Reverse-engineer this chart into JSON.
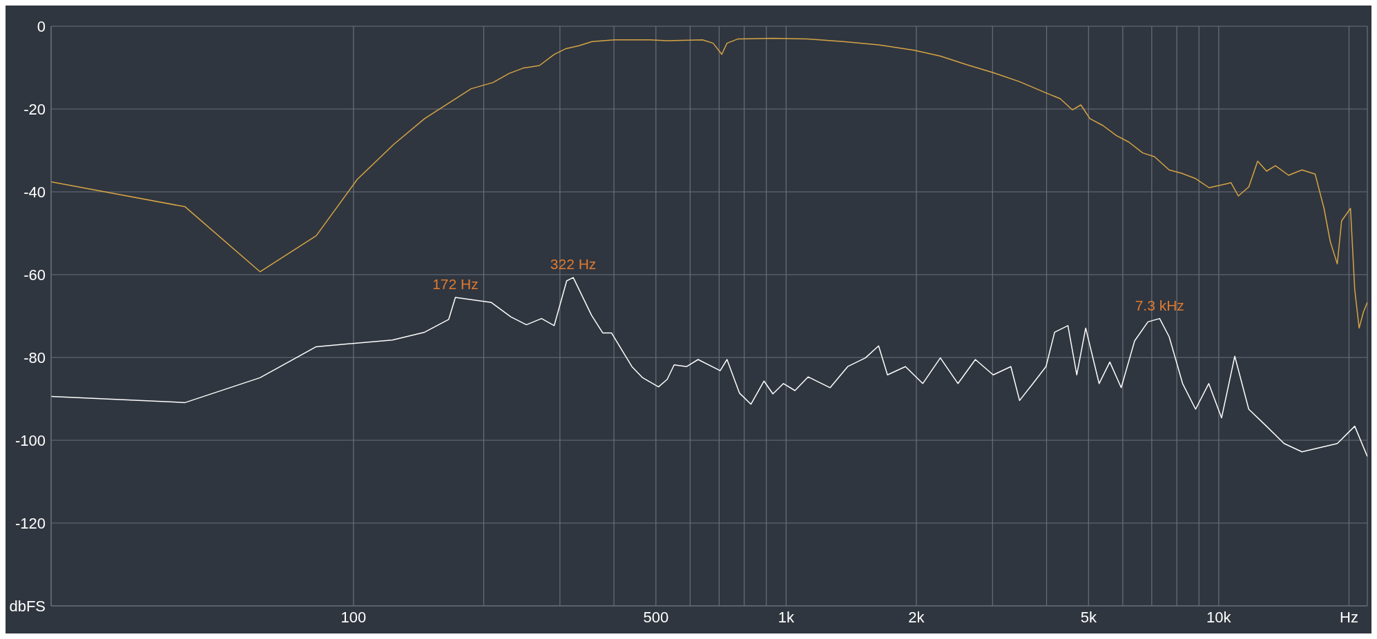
{
  "chart_data": {
    "type": "line",
    "log": "x",
    "grid": true,
    "line_style": "solid",
    "xlim": [
      20,
      22050
    ],
    "ylim": [
      -140,
      0
    ],
    "xticks": [
      {
        "value": 100,
        "label": "100"
      },
      {
        "value": 200,
        "label": null
      },
      {
        "value": 300,
        "label": null
      },
      {
        "value": 400,
        "label": null
      },
      {
        "value": 500,
        "label": "500"
      },
      {
        "value": 600,
        "label": null
      },
      {
        "value": 700,
        "label": null
      },
      {
        "value": 800,
        "label": null
      },
      {
        "value": 900,
        "label": null
      },
      {
        "value": 1000,
        "label": "1k"
      },
      {
        "value": 2000,
        "label": "2k"
      },
      {
        "value": 3000,
        "label": null
      },
      {
        "value": 4000,
        "label": null
      },
      {
        "value": 5000,
        "label": "5k"
      },
      {
        "value": 6000,
        "label": null
      },
      {
        "value": 7000,
        "label": null
      },
      {
        "value": 8000,
        "label": null
      },
      {
        "value": 9000,
        "label": null
      },
      {
        "value": 10000,
        "label": "10k"
      },
      {
        "value": 20000,
        "label": "Hz"
      }
    ],
    "yticks": [
      0,
      -20,
      -40,
      -60,
      -80,
      -100,
      -120,
      {
        "value": -140,
        "label": "dbFS"
      }
    ],
    "series": [
      {
        "color": "#d6a545",
        "x": [
          20,
          40.8,
          60.8,
          82,
          102,
          124,
          146,
          187,
          210,
          229,
          247,
          269,
          291,
          310,
          332,
          356,
          401,
          484,
          531,
          641,
          678,
          710,
          730,
          772,
          932,
          1124,
          1356,
          1636,
          1974,
          2272,
          2615,
          3010,
          3464,
          3987,
          4300,
          4589,
          4800,
          5037,
          5400,
          5797,
          6200,
          6672,
          7100,
          7680,
          8200,
          8839,
          9500,
          10675,
          11100,
          11735,
          12300,
          12900,
          13520,
          14500,
          15570,
          16700,
          17510,
          18100,
          18790,
          19230,
          20160,
          20620,
          21110,
          21600,
          22050
        ],
        "values": [
          -37.6,
          -43.6,
          -59.3,
          -50.6,
          -37,
          -28.5,
          -22.3,
          -15.1,
          -13.6,
          -11.4,
          -10.1,
          -9.5,
          -6.8,
          -5.4,
          -4.7,
          -3.7,
          -3.3,
          -3.3,
          -3.5,
          -3.3,
          -4.1,
          -6.8,
          -4.1,
          -3.1,
          -2.9,
          -3.1,
          -3.7,
          -4.5,
          -5.8,
          -7.2,
          -9.3,
          -11.2,
          -13.4,
          -16.1,
          -17.5,
          -20.2,
          -19,
          -22.3,
          -24,
          -26.4,
          -28,
          -30.6,
          -31.5,
          -34.7,
          -35.5,
          -36.8,
          -39,
          -37.8,
          -41,
          -38.8,
          -32.6,
          -35,
          -33.7,
          -36,
          -34.7,
          -35.7,
          -44,
          -52,
          -57.4,
          -47,
          -44,
          -63.6,
          -72.9,
          -69,
          -66.7
        ]
      },
      {
        "color": "#ffffff",
        "x": [
          20,
          40.8,
          60.8,
          82,
          123,
          146,
          166,
          172,
          208,
          231,
          251,
          272,
          291,
          311,
          322,
          355,
          377,
          395,
          440,
          466,
          507,
          531,
          551,
          589,
          626,
          704,
          730,
          780,
          829,
          889,
          932,
          986,
          1048,
          1124,
          1264,
          1388,
          1525,
          1636,
          1715,
          1887,
          2069,
          2272,
          2496,
          2738,
          3010,
          3307,
          3464,
          3720,
          3987,
          4175,
          4481,
          4697,
          4925,
          5290,
          5600,
          5950,
          6390,
          6860,
          7300,
          7680,
          8250,
          8840,
          9480,
          10150,
          10890,
          11730,
          12890,
          14160,
          15570,
          17100,
          18790,
          20620,
          22050
        ],
        "values": [
          -89.4,
          -90.9,
          -84.9,
          -77.4,
          -75.8,
          -73.9,
          -70.8,
          -65.5,
          -66.7,
          -70.2,
          -72.1,
          -70.6,
          -72.3,
          -61.5,
          -60.7,
          -69.8,
          -74.1,
          -74.1,
          -82.2,
          -84.9,
          -87.1,
          -85.3,
          -81.8,
          -82.2,
          -80.5,
          -83.2,
          -80.5,
          -88.6,
          -91.3,
          -85.7,
          -88.8,
          -86.3,
          -88,
          -84.7,
          -87.3,
          -82.2,
          -80.1,
          -77.2,
          -84.2,
          -82.2,
          -86.3,
          -80.1,
          -86.3,
          -80.5,
          -84.2,
          -82.2,
          -90.4,
          -86.3,
          -82.2,
          -73.9,
          -72.3,
          -84.2,
          -72.9,
          -86.3,
          -81.1,
          -87.3,
          -76,
          -71.4,
          -70.6,
          -75,
          -86.3,
          -92.5,
          -86.3,
          -94.6,
          -79.7,
          -92.5,
          -96.6,
          -100.8,
          -102.8,
          -101.8,
          -100.8,
          -96.6,
          -103.9
        ]
      }
    ],
    "annotations": [
      {
        "text": "172 Hz",
        "x": 172,
        "y": -65.5
      },
      {
        "text": "322 Hz",
        "x": 322,
        "y": -60.7
      },
      {
        "text": "7.3 kHz",
        "x": 7300,
        "y": -70.6
      }
    ]
  }
}
